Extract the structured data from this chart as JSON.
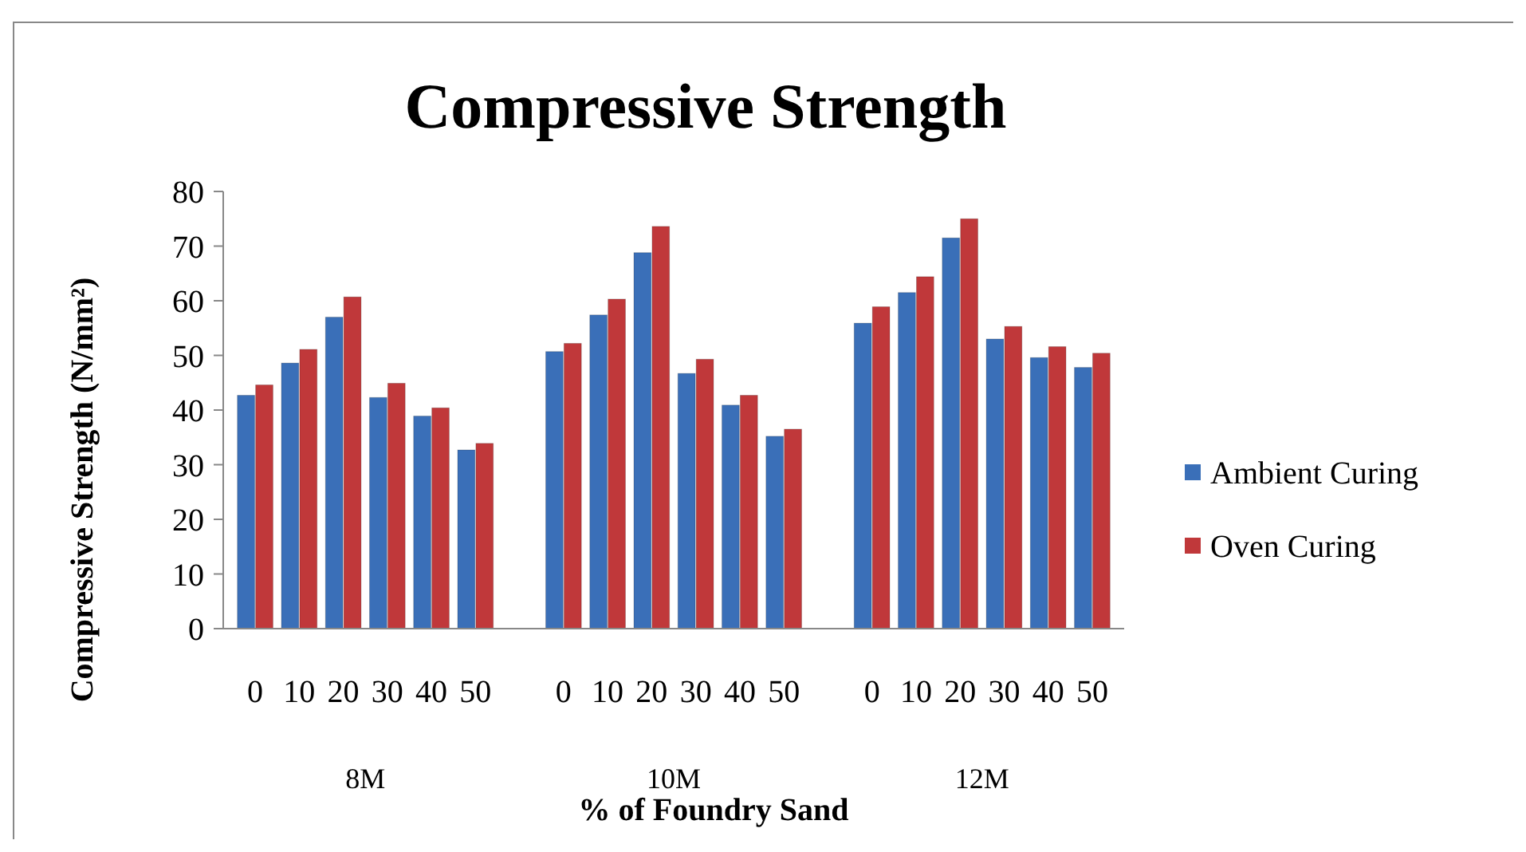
{
  "chart_data": {
    "type": "bar",
    "title": "Compressive Strength",
    "xlabel": "% of Foundry Sand",
    "ylabel": "Compressive Strength (N/mm²)",
    "categories": [
      "0",
      "10",
      "20",
      "30",
      "40",
      "50",
      null,
      "0",
      "10",
      "20",
      "30",
      "40",
      "50",
      null,
      "0",
      "10",
      "20",
      "30",
      "40",
      "50"
    ],
    "series": [
      {
        "name": "Ambient Curing",
        "color": "#3a6fb8",
        "values": [
          42.7,
          48.6,
          57.0,
          42.3,
          38.9,
          32.7,
          null,
          50.7,
          57.4,
          68.8,
          46.7,
          40.9,
          35.2,
          null,
          55.9,
          61.5,
          71.5,
          53.0,
          49.6,
          47.8
        ]
      },
      {
        "name": "Oven Curing",
        "color": "#c0383a",
        "values": [
          44.6,
          51.1,
          60.7,
          44.9,
          40.4,
          33.9,
          null,
          52.2,
          60.3,
          73.6,
          49.3,
          42.7,
          36.5,
          null,
          58.9,
          64.4,
          75.0,
          55.3,
          51.6,
          50.4
        ]
      }
    ],
    "annotations": [
      "8M",
      "10M",
      "12M"
    ],
    "ylim": [
      0,
      80
    ],
    "yticks": [
      0,
      10,
      20,
      30,
      40,
      50,
      60,
      70,
      80
    ],
    "grid": false,
    "legend": "right"
  }
}
